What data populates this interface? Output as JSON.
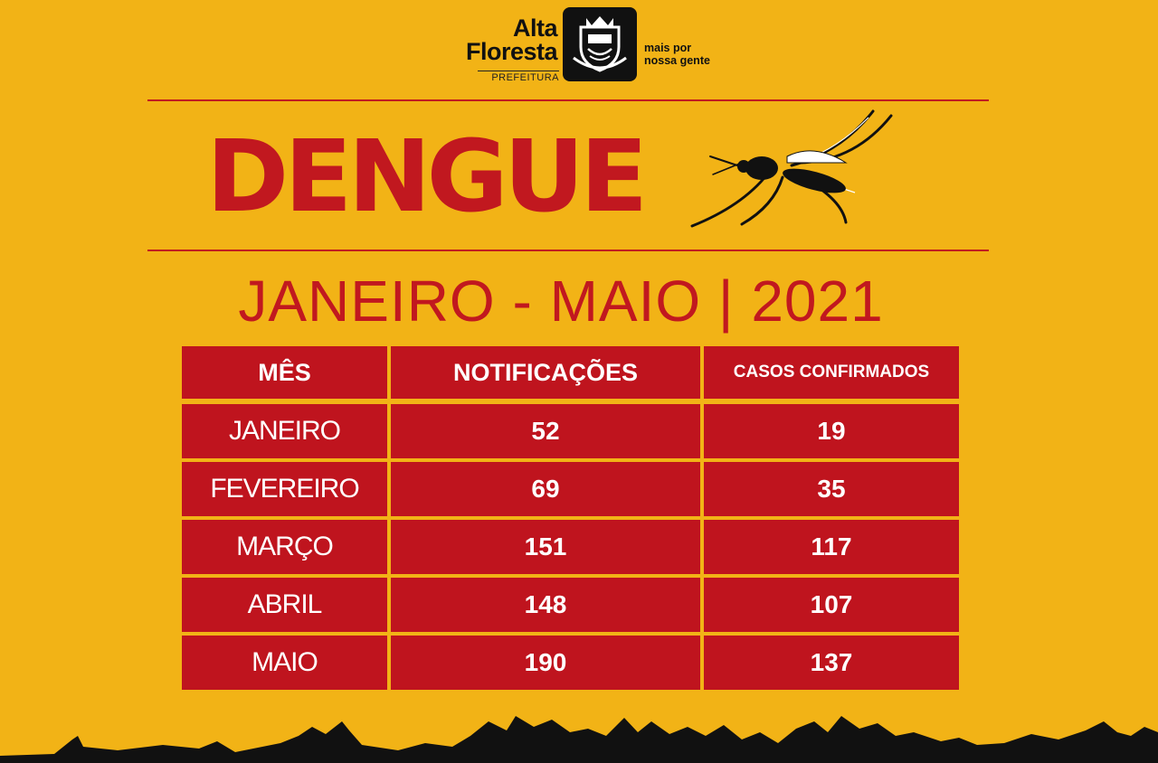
{
  "logo": {
    "name_line1": "Alta",
    "name_line2": "Floresta",
    "subtitle": "PREFEITURA",
    "slogan_line1": "mais por",
    "slogan_line2": "nossa gente"
  },
  "title": "DENGUE",
  "period": "JANEIRO - MAIO | 2021",
  "table": {
    "headers": [
      "MÊS",
      "NOTIFICAÇÕES",
      "CASOS CONFIRMADOS"
    ],
    "rows": [
      {
        "month": "JANEIRO",
        "notifications": "52",
        "confirmed": "19"
      },
      {
        "month": "FEVEREIRO",
        "notifications": "69",
        "confirmed": "35"
      },
      {
        "month": "MARÇO",
        "notifications": "151",
        "confirmed": "117"
      },
      {
        "month": "ABRIL",
        "notifications": "148",
        "confirmed": "107"
      },
      {
        "month": "MAIO",
        "notifications": "190",
        "confirmed": "137"
      }
    ]
  },
  "colors": {
    "background": "#f2b316",
    "accent_red": "#c1181f",
    "table_red": "#bf141e"
  },
  "icons": [
    "city-seal-icon",
    "mosquito-icon"
  ]
}
